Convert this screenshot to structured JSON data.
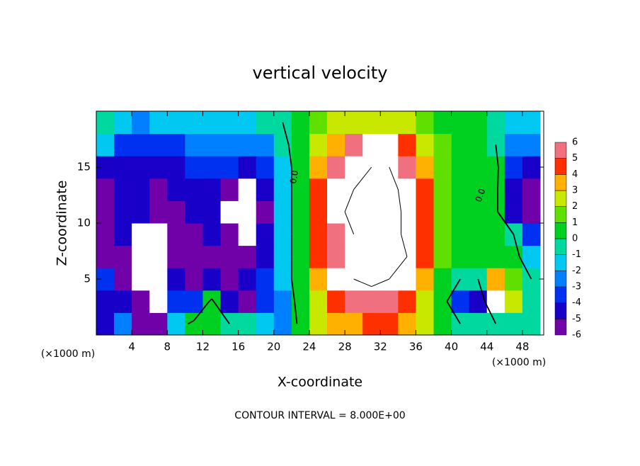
{
  "chart_data": {
    "type": "contour",
    "title": "vertical velocity",
    "x_label": "X-coordinate",
    "y_label": "Z-coordinate",
    "y_unit_label": "(×1000 m)",
    "x_unit_label": "(×1000 m)",
    "footer": "CONTOUR INTERVAL = 8.000E+00",
    "x": [
      1,
      3,
      5,
      7,
      9,
      11,
      13,
      15,
      17,
      19,
      21,
      23,
      25,
      27,
      29,
      31,
      33,
      35,
      37,
      39,
      41,
      43,
      45,
      47,
      49
    ],
    "z": [
      1,
      3,
      5,
      7,
      9,
      11,
      13,
      15,
      17,
      19
    ],
    "values": [
      [
        -4,
        -2,
        -5,
        -6,
        -1,
        0.5,
        1,
        0,
        0,
        -1,
        -2,
        0.5,
        3,
        4,
        4,
        5,
        5,
        4,
        3,
        1,
        0,
        0,
        0,
        0,
        0
      ],
      [
        -4,
        -4,
        -6,
        -7,
        -3,
        -3,
        0.5,
        -4,
        -5,
        -3,
        -2,
        1,
        3,
        5,
        6,
        6,
        6,
        5,
        3,
        1,
        -3,
        -4,
        6.5,
        3,
        0
      ],
      [
        -3,
        -5,
        -7,
        -7,
        -4,
        -5,
        -4,
        -5,
        -4,
        -3,
        -1,
        1,
        4,
        7,
        8,
        9,
        8,
        7,
        4,
        1,
        0,
        0,
        4,
        2,
        0
      ],
      [
        -5,
        -5,
        -7,
        -8,
        -5,
        -5,
        -5,
        -5,
        -5,
        -4,
        -1,
        1,
        5,
        6,
        8,
        10,
        9,
        8,
        5,
        2,
        1,
        0.5,
        1,
        0.5,
        -1
      ],
      [
        -5,
        -4,
        -7,
        -7,
        -5,
        -5,
        -4,
        -6,
        -7,
        -4,
        -1,
        1,
        5,
        6,
        8,
        10,
        10,
        7,
        5,
        2,
        1,
        1,
        1,
        0,
        -3
      ],
      [
        -6,
        -4,
        -4,
        -5,
        -5,
        -4,
        -4,
        -7,
        -8,
        -5,
        -1,
        1,
        5,
        7,
        9,
        11,
        10,
        7,
        5,
        2,
        1,
        1,
        0.5,
        -4,
        -6
      ],
      [
        -5,
        -4,
        -4,
        -5,
        -4,
        -4,
        -4,
        -6,
        -7,
        -4,
        -1,
        1,
        5,
        7,
        8,
        10,
        9,
        7,
        5,
        2,
        1,
        1,
        0.5,
        -4,
        -5
      ],
      [
        -4,
        -4,
        -4,
        -4,
        -4,
        -3,
        -3,
        -3,
        -4,
        -3,
        -1,
        1,
        4,
        6,
        7,
        8,
        8,
        6,
        4,
        2,
        1,
        0.5,
        0.5,
        -3,
        -4
      ],
      [
        -1,
        -3,
        -3,
        -3,
        -3,
        -2,
        -2,
        -2,
        -2,
        -2,
        -0.5,
        1,
        3,
        4,
        6,
        7,
        7,
        5,
        3,
        1.5,
        0.5,
        0.5,
        0,
        -2,
        -2
      ],
      [
        0,
        -1,
        -2,
        -1,
        -1,
        -1,
        -1,
        -1,
        -1,
        -0.5,
        0,
        0.5,
        2,
        3,
        3,
        3,
        3,
        3,
        2,
        1,
        0.5,
        0.5,
        0,
        -1,
        -1
      ]
    ],
    "xlim": [
      0,
      50.4
    ],
    "ylim": [
      0,
      20
    ],
    "xticks": [
      4,
      8,
      12,
      16,
      20,
      24,
      28,
      32,
      36,
      40,
      44,
      48
    ],
    "yticks": [
      5,
      10,
      15
    ],
    "colorbar": {
      "levels": [
        -6,
        -5,
        -4,
        -3,
        -2,
        -1,
        0,
        1,
        2,
        3,
        4,
        5,
        6
      ],
      "colors": [
        "#7000a8",
        "#1800c8",
        "#0030f0",
        "#0080ff",
        "#00c8f0",
        "#00d8a0",
        "#00d020",
        "#60e000",
        "#c8e800",
        "#ffb000",
        "#ff3000",
        "#f07080"
      ]
    },
    "out_of_range_color": "#ffffff",
    "contour_levels": [
      -8,
      0,
      8
    ],
    "contour_labels": [
      "0.0",
      "0.0"
    ]
  }
}
